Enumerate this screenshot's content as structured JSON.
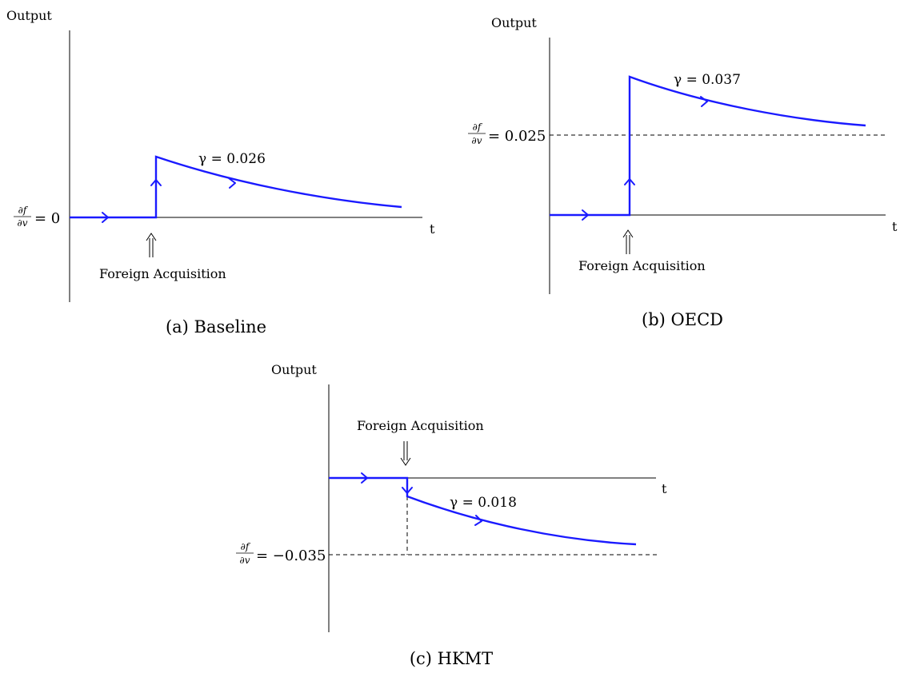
{
  "panels": [
    {
      "id": "a",
      "ylabel": "Output",
      "xlabel": "t",
      "level_label_frac_num": "∂f",
      "level_label_frac_den": "∂v",
      "level_label_value": "= 0",
      "gamma_label": "γ = 0.026",
      "event_label": "Foreign Acquisition",
      "caption": "(a) Baseline"
    },
    {
      "id": "b",
      "ylabel": "Output",
      "xlabel": "t",
      "level_label_frac_num": "∂f",
      "level_label_frac_den": "∂v",
      "level_label_value": "= 0.025",
      "gamma_label": "γ = 0.037",
      "event_label": "Foreign Acquisition",
      "caption": "(b) OECD"
    },
    {
      "id": "c",
      "ylabel": "Output",
      "xlabel": "t",
      "level_label_frac_num": "∂f",
      "level_label_frac_den": "∂v",
      "level_label_value": "= −0.035",
      "gamma_label": "γ = 0.018",
      "event_label": "Foreign Acquisition",
      "caption": "(c) HKMT"
    }
  ],
  "colors": {
    "path": "#1a1aff",
    "axis": "#000000"
  }
}
